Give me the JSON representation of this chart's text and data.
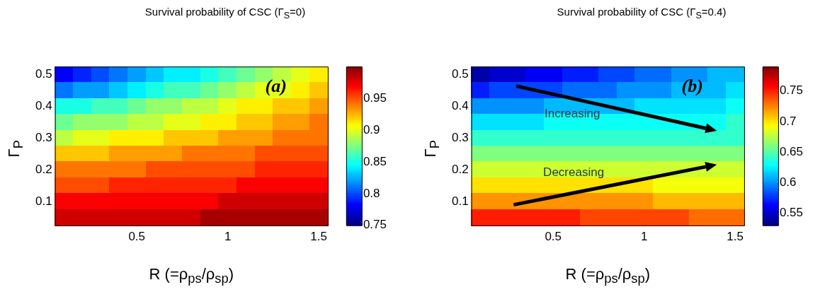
{
  "chart_data": [
    {
      "type": "heatmap",
      "title": "Survival probability of CSC (Γ$_{S}$=0)",
      "xlabel": "R (=ρ$_{ps}$/ρ$_{sp}$)",
      "ylabel": "Γ$_{P}$",
      "categories": [
        null,
        null,
        null,
        null,
        "0.5",
        null,
        null,
        null,
        null,
        "1",
        null,
        null,
        null,
        null,
        "1.5"
      ],
      "y_categories": [
        "0.5",
        null,
        "0.4",
        null,
        "0.3",
        null,
        "0.2",
        null,
        "0.1",
        null
      ],
      "clim": [
        0.75,
        1.0
      ],
      "cticks": [
        0.75,
        0.8,
        0.85,
        0.9,
        0.95
      ],
      "cells": [
        [
          0.78,
          0.79,
          0.8,
          0.81,
          0.82,
          0.83,
          0.84,
          0.84,
          0.85,
          0.86,
          0.87,
          0.88,
          0.89,
          0.9,
          0.91
        ],
        [
          0.81,
          0.82,
          0.82,
          0.83,
          0.84,
          0.85,
          0.86,
          0.86,
          0.87,
          0.88,
          0.89,
          0.9,
          0.9,
          0.91,
          0.92
        ],
        [
          0.85,
          0.85,
          0.86,
          0.86,
          0.87,
          0.88,
          0.88,
          0.89,
          0.89,
          0.9,
          0.91,
          0.91,
          0.92,
          0.92,
          0.93
        ],
        [
          0.87,
          0.88,
          0.88,
          0.88,
          0.89,
          0.89,
          0.9,
          0.9,
          0.91,
          0.91,
          0.92,
          0.92,
          0.93,
          0.93,
          0.94
        ],
        [
          0.89,
          0.9,
          0.9,
          0.91,
          0.91,
          0.91,
          0.92,
          0.92,
          0.92,
          0.93,
          0.93,
          0.93,
          0.94,
          0.94,
          0.94
        ],
        [
          0.92,
          0.92,
          0.92,
          0.93,
          0.93,
          0.93,
          0.93,
          0.94,
          0.94,
          0.94,
          0.94,
          0.95,
          0.95,
          0.95,
          0.95
        ],
        [
          0.94,
          0.94,
          0.94,
          0.94,
          0.94,
          0.95,
          0.95,
          0.95,
          0.95,
          0.95,
          0.95,
          0.96,
          0.96,
          0.96,
          0.96
        ],
        [
          0.95,
          0.95,
          0.95,
          0.96,
          0.96,
          0.96,
          0.96,
          0.96,
          0.96,
          0.96,
          0.97,
          0.97,
          0.97,
          0.97,
          0.97
        ],
        [
          0.97,
          0.97,
          0.97,
          0.97,
          0.97,
          0.97,
          0.97,
          0.97,
          0.97,
          0.98,
          0.98,
          0.98,
          0.98,
          0.98,
          0.98
        ],
        [
          0.98,
          0.98,
          0.98,
          0.98,
          0.98,
          0.98,
          0.98,
          0.98,
          0.99,
          0.99,
          0.99,
          0.99,
          0.99,
          0.99,
          0.99
        ]
      ],
      "annotations": [
        "(a)"
      ]
    },
    {
      "type": "heatmap",
      "title": "Survival probability of CSC (Γ$_{S}$=0.4)",
      "xlabel": "R (=ρ$_{ps}$/ρ$_{sp}$)",
      "ylabel": "Γ$_{P}$",
      "categories": [
        null,
        null,
        null,
        null,
        "0.5",
        null,
        null,
        null,
        null,
        "1",
        null,
        null,
        null,
        null,
        "1.5"
      ],
      "y_categories": [
        "0.5",
        null,
        "0.4",
        null,
        "0.3",
        null,
        "0.2",
        null,
        "0.1",
        null
      ],
      "clim": [
        0.53,
        0.79
      ],
      "cticks": [
        0.55,
        0.6,
        0.65,
        0.7,
        0.75
      ],
      "cells": [
        [
          0.54,
          0.55,
          0.55,
          0.56,
          0.56,
          0.57,
          0.57,
          0.58,
          0.58,
          0.59,
          0.59,
          0.6,
          0.6,
          0.61,
          0.61
        ],
        [
          0.57,
          0.58,
          0.58,
          0.58,
          0.58,
          0.59,
          0.59,
          0.59,
          0.6,
          0.6,
          0.6,
          0.61,
          0.61,
          0.61,
          0.62
        ],
        [
          0.6,
          0.6,
          0.6,
          0.6,
          0.61,
          0.61,
          0.61,
          0.61,
          0.61,
          0.62,
          0.62,
          0.62,
          0.62,
          0.62,
          0.63
        ],
        [
          0.62,
          0.62,
          0.62,
          0.62,
          0.63,
          0.63,
          0.63,
          0.63,
          0.63,
          0.63,
          0.63,
          0.63,
          0.63,
          0.63,
          0.64
        ],
        [
          0.64,
          0.64,
          0.64,
          0.64,
          0.64,
          0.64,
          0.64,
          0.64,
          0.64,
          0.64,
          0.64,
          0.64,
          0.64,
          0.64,
          0.64
        ],
        [
          0.66,
          0.66,
          0.66,
          0.66,
          0.66,
          0.66,
          0.66,
          0.66,
          0.66,
          0.66,
          0.66,
          0.66,
          0.66,
          0.66,
          0.66
        ],
        [
          0.68,
          0.68,
          0.68,
          0.68,
          0.68,
          0.68,
          0.68,
          0.68,
          0.68,
          0.68,
          0.68,
          0.68,
          0.68,
          0.68,
          0.68
        ],
        [
          0.7,
          0.7,
          0.7,
          0.7,
          0.7,
          0.7,
          0.7,
          0.7,
          0.7,
          0.7,
          0.69,
          0.69,
          0.69,
          0.69,
          0.69
        ],
        [
          0.72,
          0.72,
          0.72,
          0.72,
          0.72,
          0.72,
          0.72,
          0.72,
          0.72,
          0.72,
          0.71,
          0.71,
          0.71,
          0.71,
          0.71
        ],
        [
          0.75,
          0.75,
          0.75,
          0.75,
          0.75,
          0.75,
          0.74,
          0.74,
          0.74,
          0.74,
          0.74,
          0.74,
          0.73,
          0.73,
          0.73
        ]
      ],
      "annotations": [
        "(b)",
        "Increasing",
        "Decreasing"
      ]
    }
  ]
}
